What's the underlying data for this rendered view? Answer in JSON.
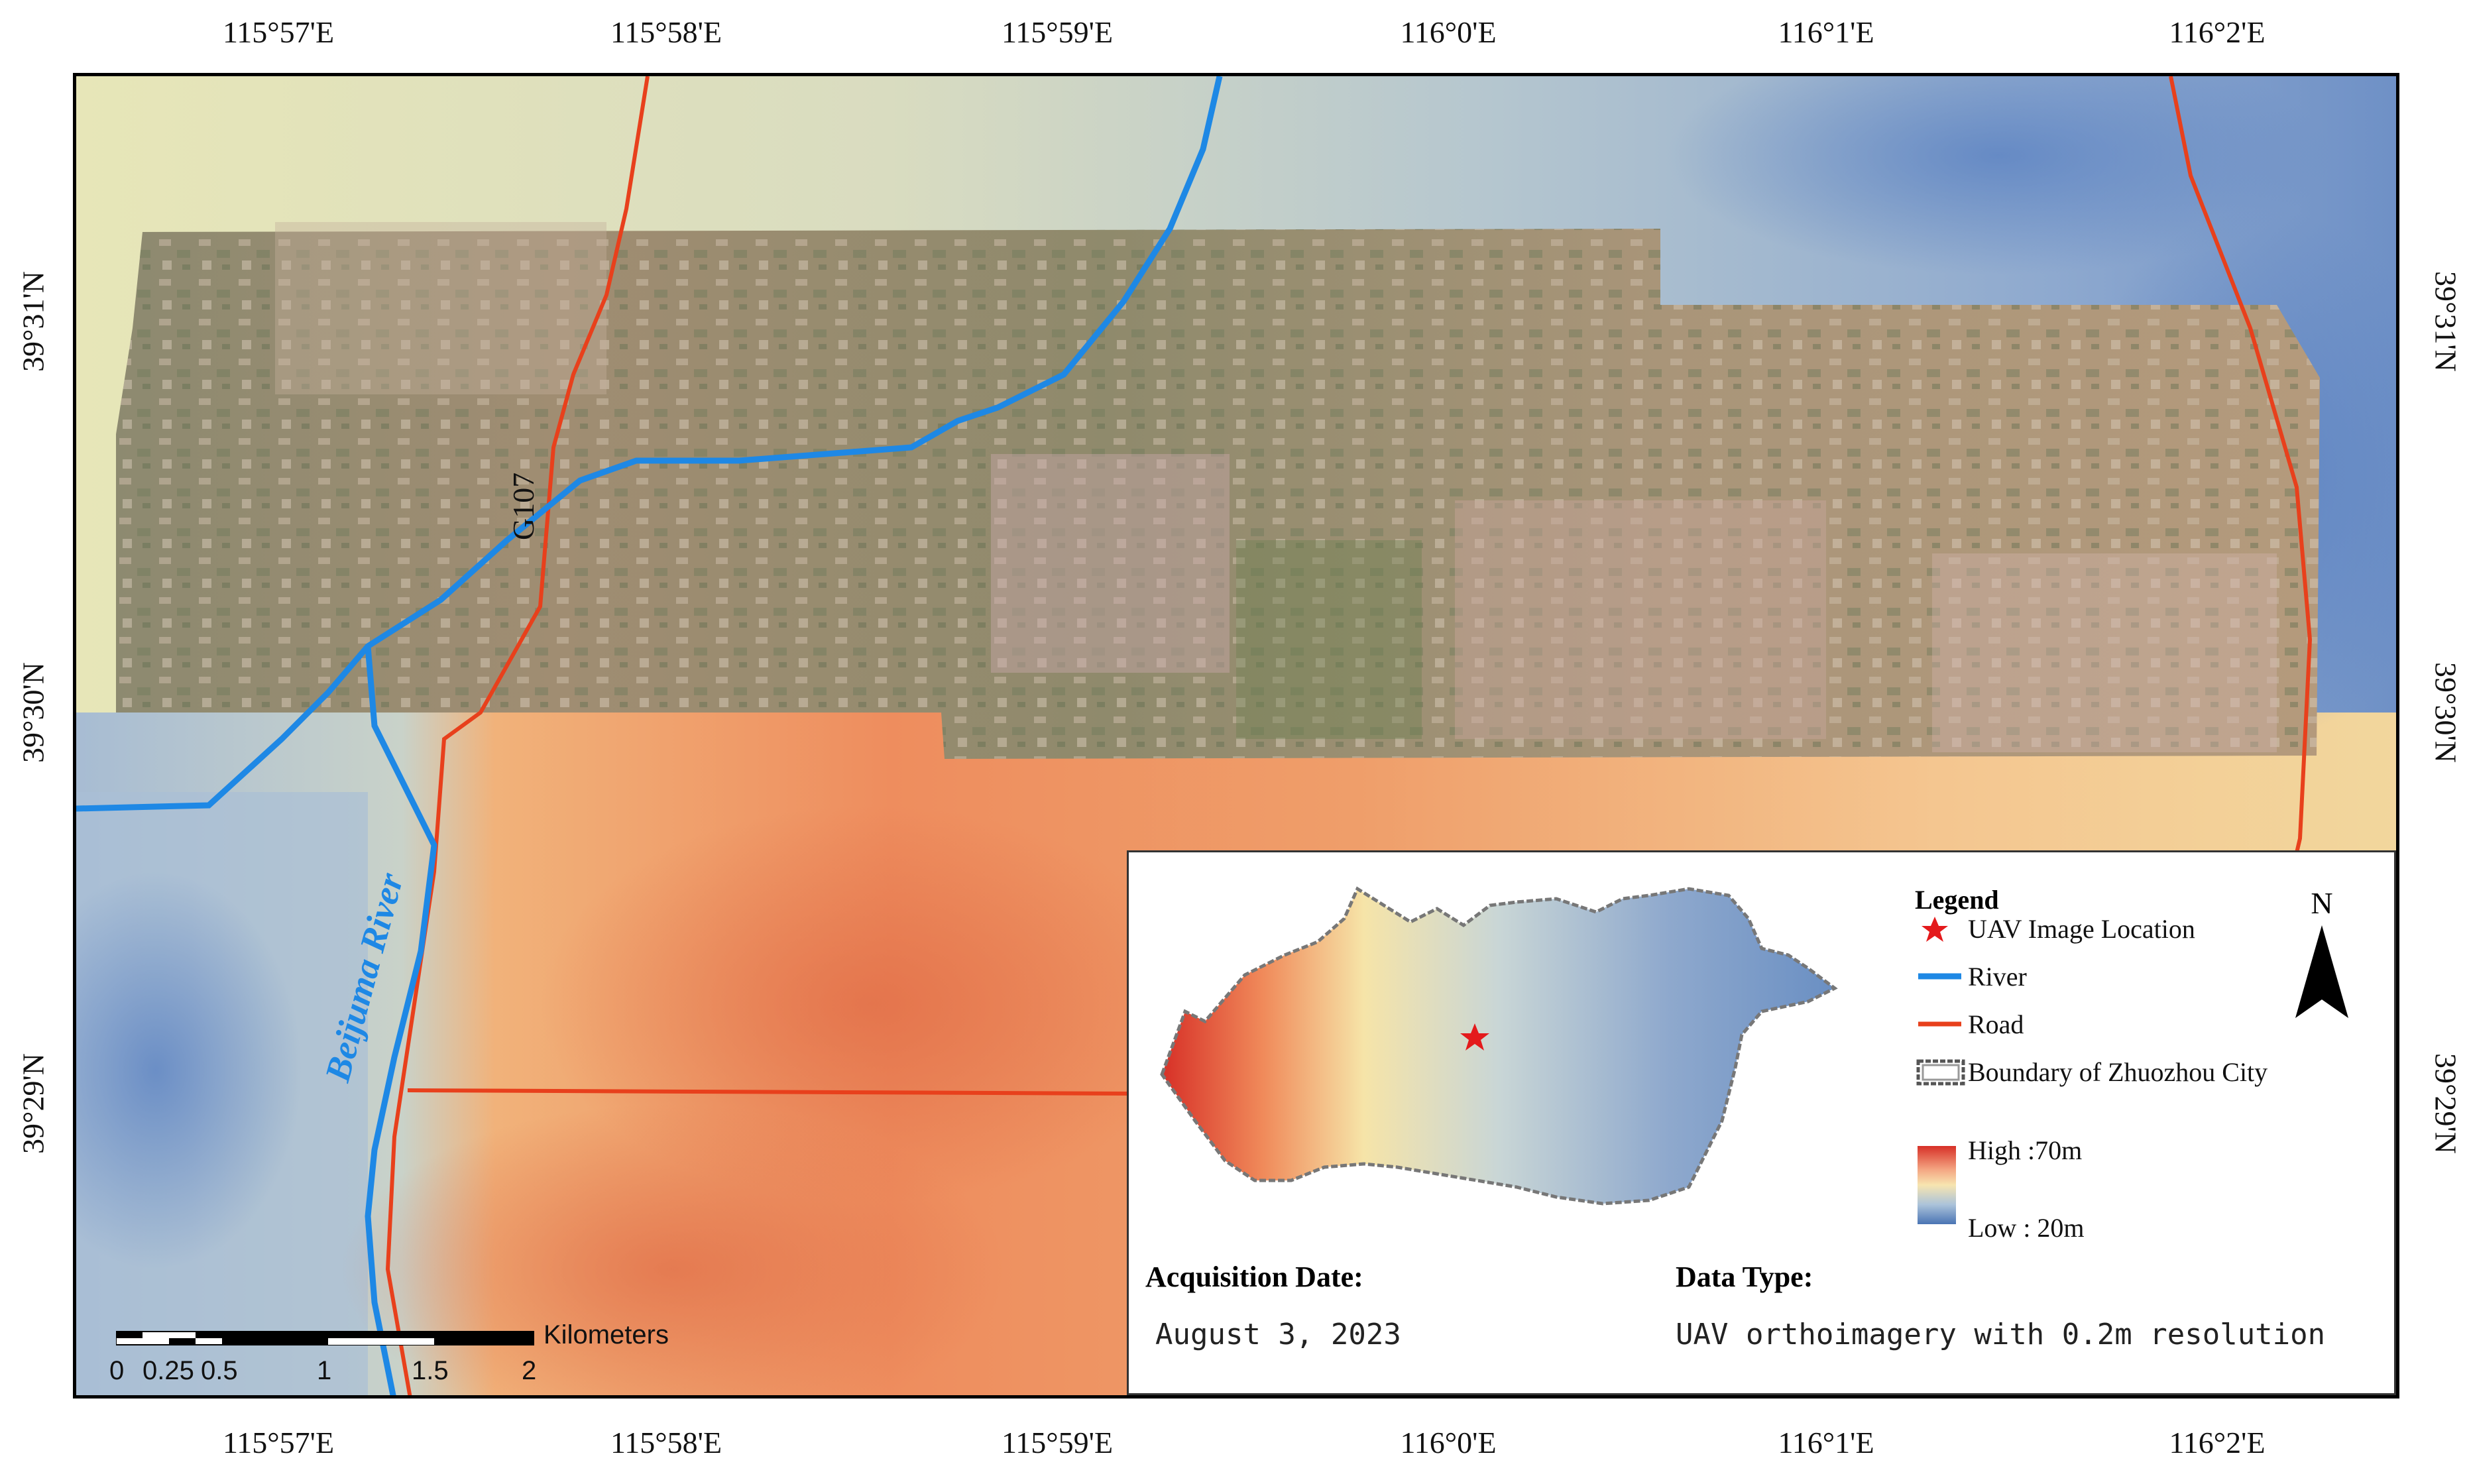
{
  "graticule": {
    "longitudes": [
      "115°57'E",
      "115°58'E",
      "115°59'E",
      "116°0'E",
      "116°1'E",
      "116°2'E"
    ],
    "latitudes": [
      "39°31'N",
      "39°30'N",
      "39°29'N"
    ]
  },
  "map_labels": {
    "river_name": "Beijuma River",
    "road_name": "G107"
  },
  "legend": {
    "title": "Legend",
    "items": [
      {
        "label": "UAV Image Location",
        "icon": "red-star-icon"
      },
      {
        "label": "River",
        "icon": "blue-line-icon"
      },
      {
        "label": "Road",
        "icon": "red-line-icon"
      },
      {
        "label": "Boundary of Zhuozhou City",
        "icon": "boundary-icon"
      }
    ],
    "elevation_high": "High :70m",
    "elevation_low": "Low : 20m"
  },
  "north": {
    "label": "N"
  },
  "info": {
    "acquisition_label": "Acquisition Date:",
    "acquisition_value": "August 3, 2023",
    "datatype_label": "Data Type:",
    "datatype_value": "UAV orthoimagery with 0.2m resolution"
  },
  "scalebar": {
    "unit": "Kilometers",
    "ticks": [
      "0",
      "0.25",
      "0.5",
      "1",
      "1.5",
      "2"
    ]
  },
  "colors": {
    "river": "#1e88e5",
    "road": "#e8401c",
    "dem_high": "#d73027",
    "dem_low": "#4a74b4",
    "star": "#e41a1c"
  }
}
